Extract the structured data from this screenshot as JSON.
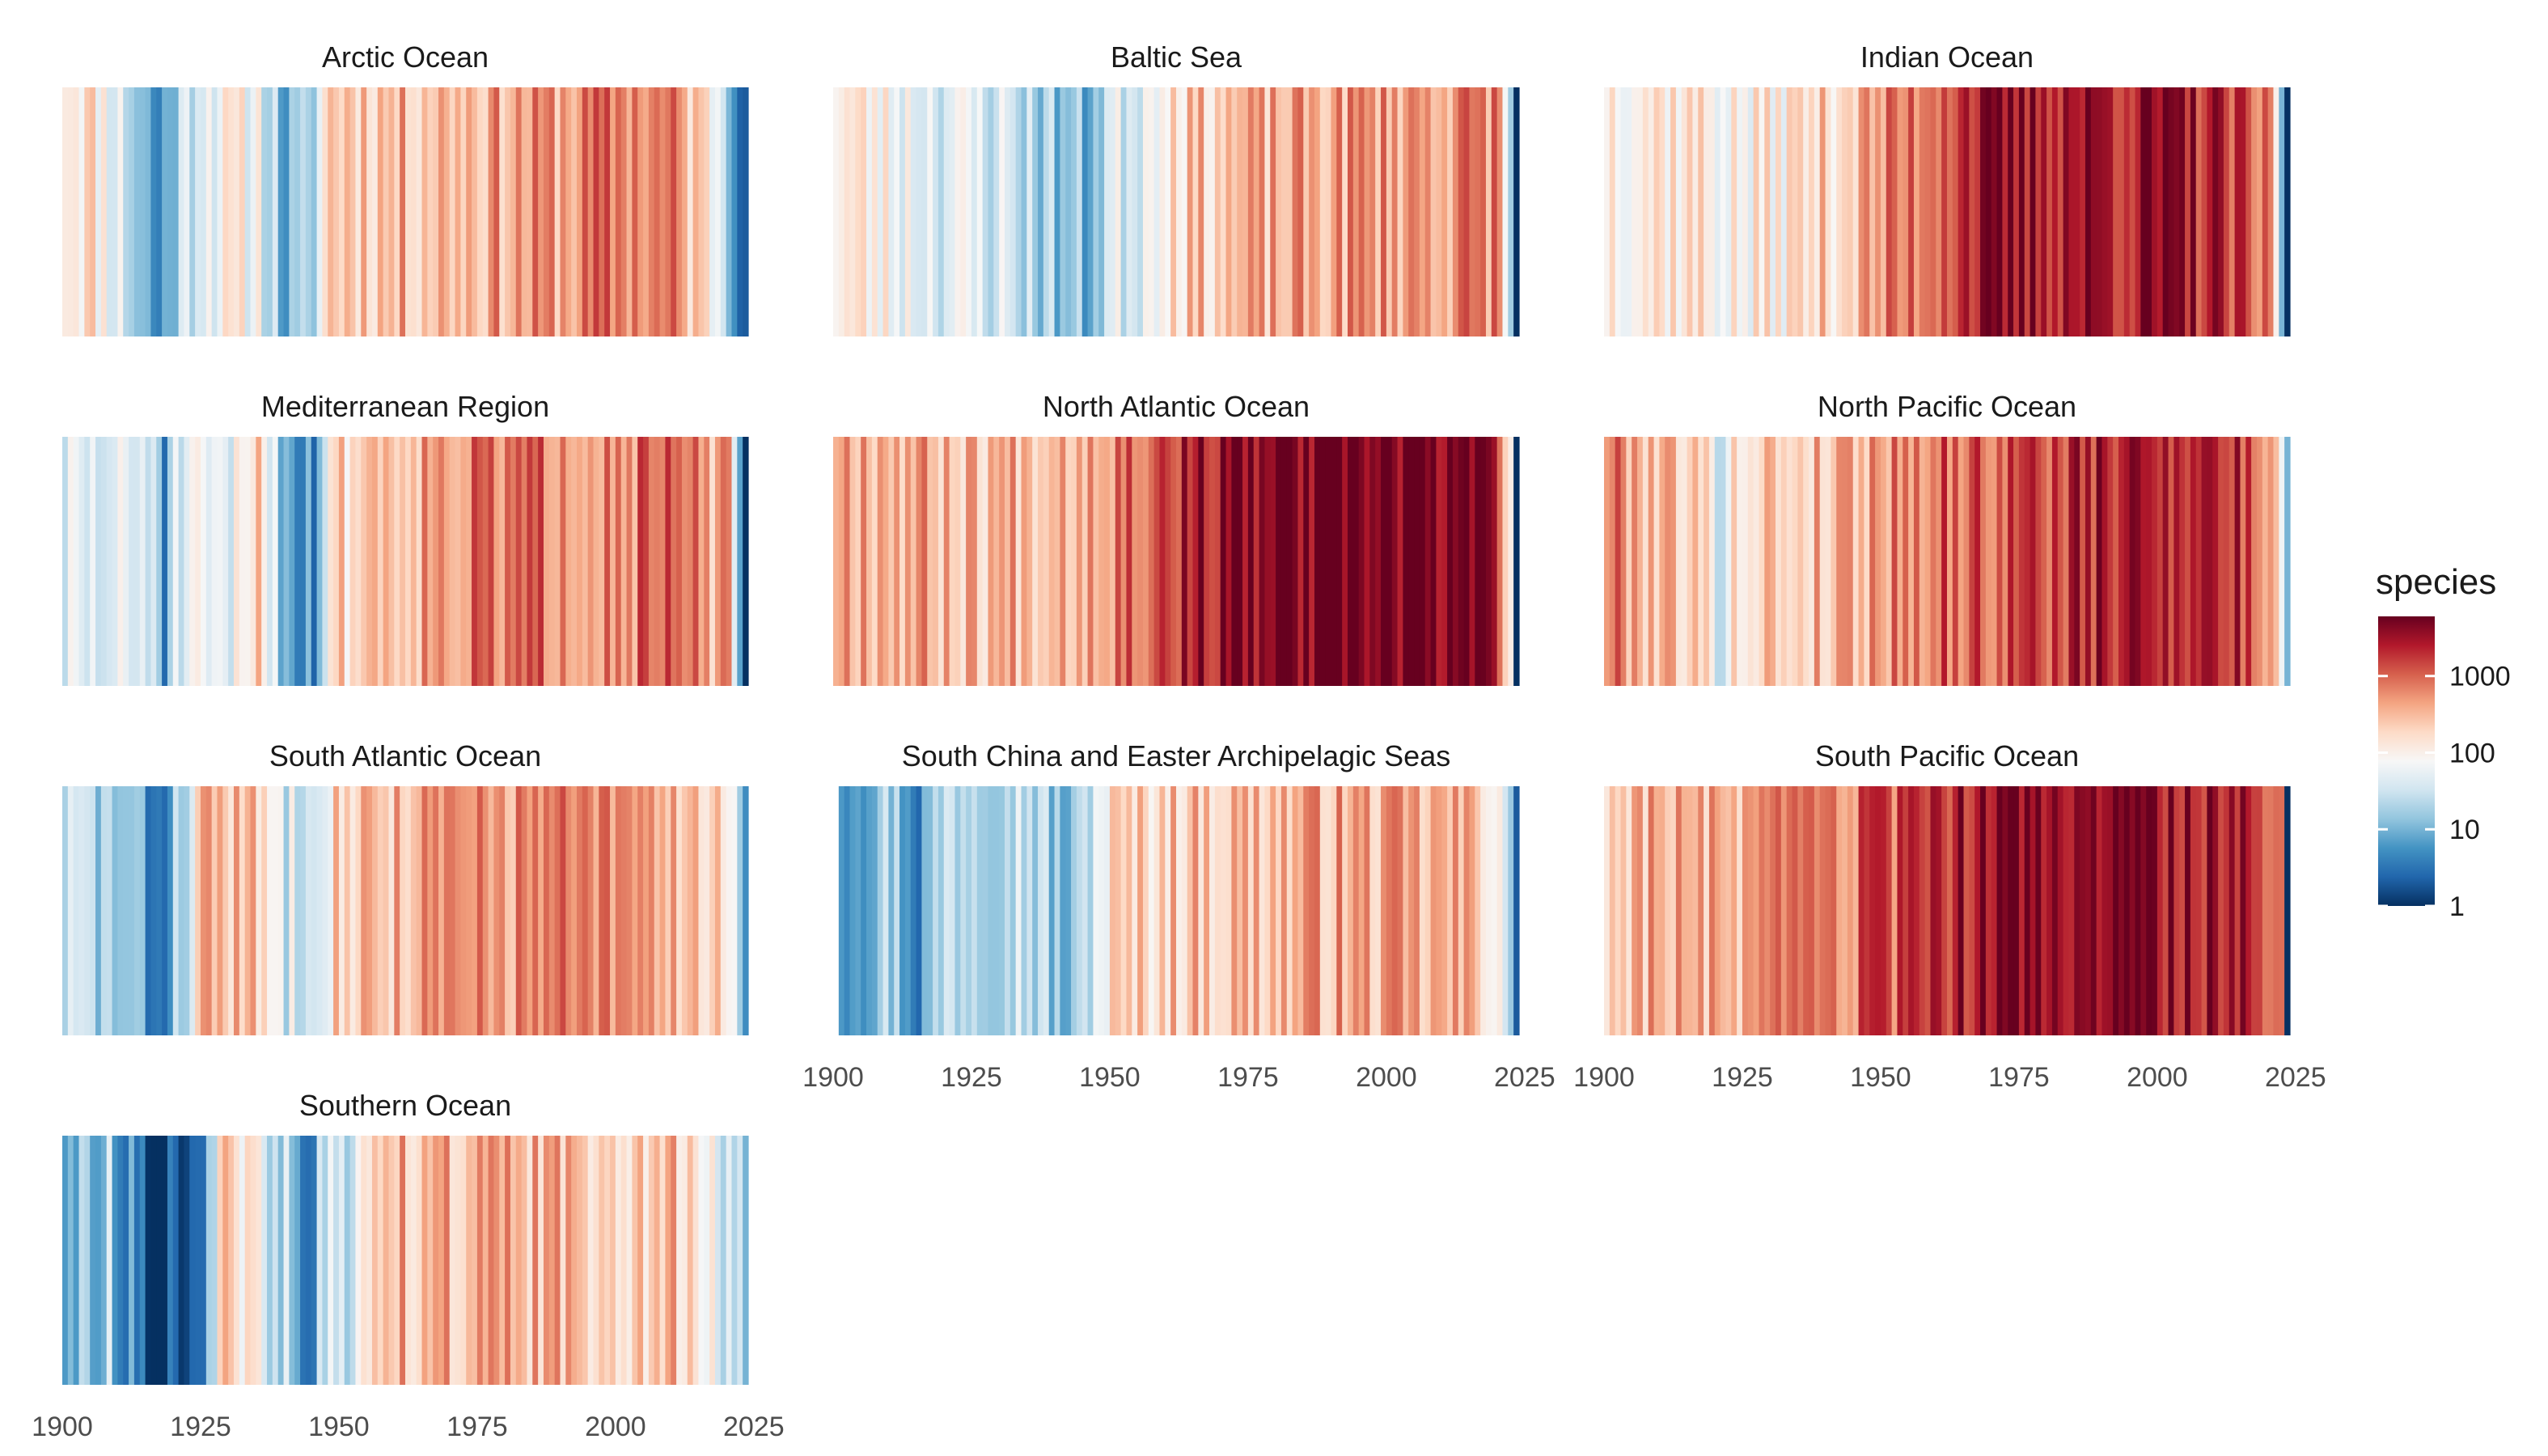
{
  "chart_data": {
    "type": "heatmap",
    "xlim": [
      1900,
      2023
    ],
    "x_ticks": [
      1900,
      1925,
      1950,
      1975,
      2000,
      2025
    ],
    "x_tick_labels": [
      "1900",
      "1925",
      "1950",
      "1975",
      "2000",
      "2025"
    ],
    "legend": {
      "title": "species",
      "scale": "log10",
      "limits": [
        1,
        6000
      ],
      "breaks": [
        1,
        10,
        100,
        1000
      ],
      "break_labels": [
        "1",
        "10",
        "100",
        "1000"
      ],
      "position": "right",
      "palette": [
        "#053061",
        "#2166ac",
        "#4393c3",
        "#92c5de",
        "#d1e5f0",
        "#f7f7f7",
        "#fddbc7",
        "#f4a582",
        "#d6604d",
        "#b2182b",
        "#67001f"
      ]
    },
    "panels": [
      {
        "title": "Arctic Ocean",
        "start_year": 1900,
        "knots": [
          [
            1900,
            200
          ],
          [
            1905,
            150
          ],
          [
            1910,
            50
          ],
          [
            1917,
            4
          ],
          [
            1920,
            20
          ],
          [
            1925,
            80
          ],
          [
            1935,
            80
          ],
          [
            1940,
            8
          ],
          [
            1944,
            12
          ],
          [
            1948,
            300
          ],
          [
            1960,
            300
          ],
          [
            1975,
            400
          ],
          [
            1990,
            500
          ],
          [
            2000,
            800
          ],
          [
            2010,
            600
          ],
          [
            2018,
            80
          ],
          [
            2021,
            15
          ],
          [
            2023,
            2
          ]
        ],
        "seed": 11
      },
      {
        "title": "Baltic Sea",
        "start_year": 1900,
        "knots": [
          [
            1900,
            150
          ],
          [
            1910,
            80
          ],
          [
            1920,
            50
          ],
          [
            1930,
            40
          ],
          [
            1940,
            15
          ],
          [
            1945,
            10
          ],
          [
            1950,
            40
          ],
          [
            1955,
            60
          ],
          [
            1960,
            200
          ],
          [
            1975,
            300
          ],
          [
            1995,
            500
          ],
          [
            2010,
            550
          ],
          [
            2020,
            700
          ],
          [
            2023,
            1
          ]
        ],
        "seed": 23
      },
      {
        "title": "Indian Ocean",
        "start_year": 1900,
        "knots": [
          [
            1900,
            150
          ],
          [
            1915,
            150
          ],
          [
            1925,
            80
          ],
          [
            1935,
            150
          ],
          [
            1945,
            300
          ],
          [
            1955,
            800
          ],
          [
            1965,
            2500
          ],
          [
            1980,
            3000
          ],
          [
            2000,
            3000
          ],
          [
            2010,
            2000
          ],
          [
            2020,
            500
          ],
          [
            2022,
            20
          ],
          [
            2023,
            1
          ]
        ],
        "seed": 37
      },
      {
        "title": "Mediterranean Region",
        "start_year": 1900,
        "knots": [
          [
            1900,
            40
          ],
          [
            1917,
            40
          ],
          [
            1918,
            2
          ],
          [
            1920,
            40
          ],
          [
            1930,
            40
          ],
          [
            1935,
            300
          ],
          [
            1940,
            10
          ],
          [
            1945,
            5
          ],
          [
            1948,
            150
          ],
          [
            1955,
            300
          ],
          [
            1970,
            600
          ],
          [
            1990,
            800
          ],
          [
            2000,
            700
          ],
          [
            2010,
            800
          ],
          [
            2020,
            300
          ],
          [
            2023,
            1
          ]
        ],
        "seed": 51
      },
      {
        "title": "North Atlantic Ocean",
        "start_year": 1900,
        "knots": [
          [
            1900,
            600
          ],
          [
            1915,
            400
          ],
          [
            1925,
            300
          ],
          [
            1935,
            400
          ],
          [
            1945,
            500
          ],
          [
            1955,
            1200
          ],
          [
            1960,
            1500
          ],
          [
            1965,
            3000
          ],
          [
            1975,
            4000
          ],
          [
            2000,
            5000
          ],
          [
            2015,
            5000
          ],
          [
            2020,
            2000
          ],
          [
            2022,
            100
          ],
          [
            2023,
            1
          ]
        ],
        "seed": 67
      },
      {
        "title": "North Pacific Ocean",
        "start_year": 1900,
        "knots": [
          [
            1900,
            800
          ],
          [
            1910,
            300
          ],
          [
            1915,
            300
          ],
          [
            1920,
            50
          ],
          [
            1925,
            200
          ],
          [
            1935,
            250
          ],
          [
            1945,
            400
          ],
          [
            1955,
            800
          ],
          [
            1965,
            1000
          ],
          [
            1980,
            1500
          ],
          [
            1995,
            2500
          ],
          [
            2005,
            3000
          ],
          [
            2015,
            1500
          ],
          [
            2020,
            600
          ],
          [
            2022,
            100
          ],
          [
            2023,
            10
          ]
        ],
        "seed": 79
      },
      {
        "title": "South Atlantic Ocean",
        "start_year": 1900,
        "knots": [
          [
            1900,
            30
          ],
          [
            1910,
            15
          ],
          [
            1917,
            3
          ],
          [
            1920,
            15
          ],
          [
            1926,
            400
          ],
          [
            1935,
            200
          ],
          [
            1940,
            40
          ],
          [
            1945,
            80
          ],
          [
            1950,
            250
          ],
          [
            1965,
            400
          ],
          [
            1985,
            600
          ],
          [
            2000,
            500
          ],
          [
            2015,
            300
          ],
          [
            2020,
            150
          ],
          [
            2023,
            5
          ]
        ],
        "seed": 83
      },
      {
        "title": "South China and Easter Archipelagic Seas",
        "start_year": 1901,
        "knots": [
          [
            1901,
            10
          ],
          [
            1910,
            20
          ],
          [
            1915,
            5
          ],
          [
            1920,
            30
          ],
          [
            1930,
            40
          ],
          [
            1935,
            30
          ],
          [
            1943,
            8
          ],
          [
            1946,
            40
          ],
          [
            1950,
            150
          ],
          [
            1960,
            250
          ],
          [
            1975,
            300
          ],
          [
            1990,
            400
          ],
          [
            2000,
            350
          ],
          [
            2015,
            300
          ],
          [
            2020,
            150
          ],
          [
            2023,
            2
          ]
        ],
        "seed": 97
      },
      {
        "title": "South Pacific Ocean",
        "start_year": 1900,
        "knots": [
          [
            1900,
            200
          ],
          [
            1905,
            400
          ],
          [
            1920,
            300
          ],
          [
            1930,
            400
          ],
          [
            1945,
            800
          ],
          [
            1958,
            1200
          ],
          [
            1963,
            2500
          ],
          [
            1970,
            3500
          ],
          [
            1985,
            4000
          ],
          [
            2000,
            3500
          ],
          [
            2010,
            3000
          ],
          [
            2020,
            1500
          ],
          [
            2022,
            500
          ],
          [
            2023,
            1
          ]
        ],
        "seed": 103
      },
      {
        "title": "Southern Ocean",
        "start_year": 1900,
        "knots": [
          [
            1900,
            10
          ],
          [
            1908,
            20
          ],
          [
            1912,
            4
          ],
          [
            1915,
            2
          ],
          [
            1920,
            2
          ],
          [
            1925,
            5
          ],
          [
            1929,
            200
          ],
          [
            1935,
            60
          ],
          [
            1940,
            20
          ],
          [
            1943,
            2
          ],
          [
            1947,
            30
          ],
          [
            1952,
            20
          ],
          [
            1955,
            300
          ],
          [
            1970,
            350
          ],
          [
            1985,
            300
          ],
          [
            2000,
            300
          ],
          [
            2010,
            250
          ],
          [
            2015,
            100
          ],
          [
            2020,
            40
          ],
          [
            2023,
            10
          ]
        ],
        "seed": 113
      }
    ]
  }
}
